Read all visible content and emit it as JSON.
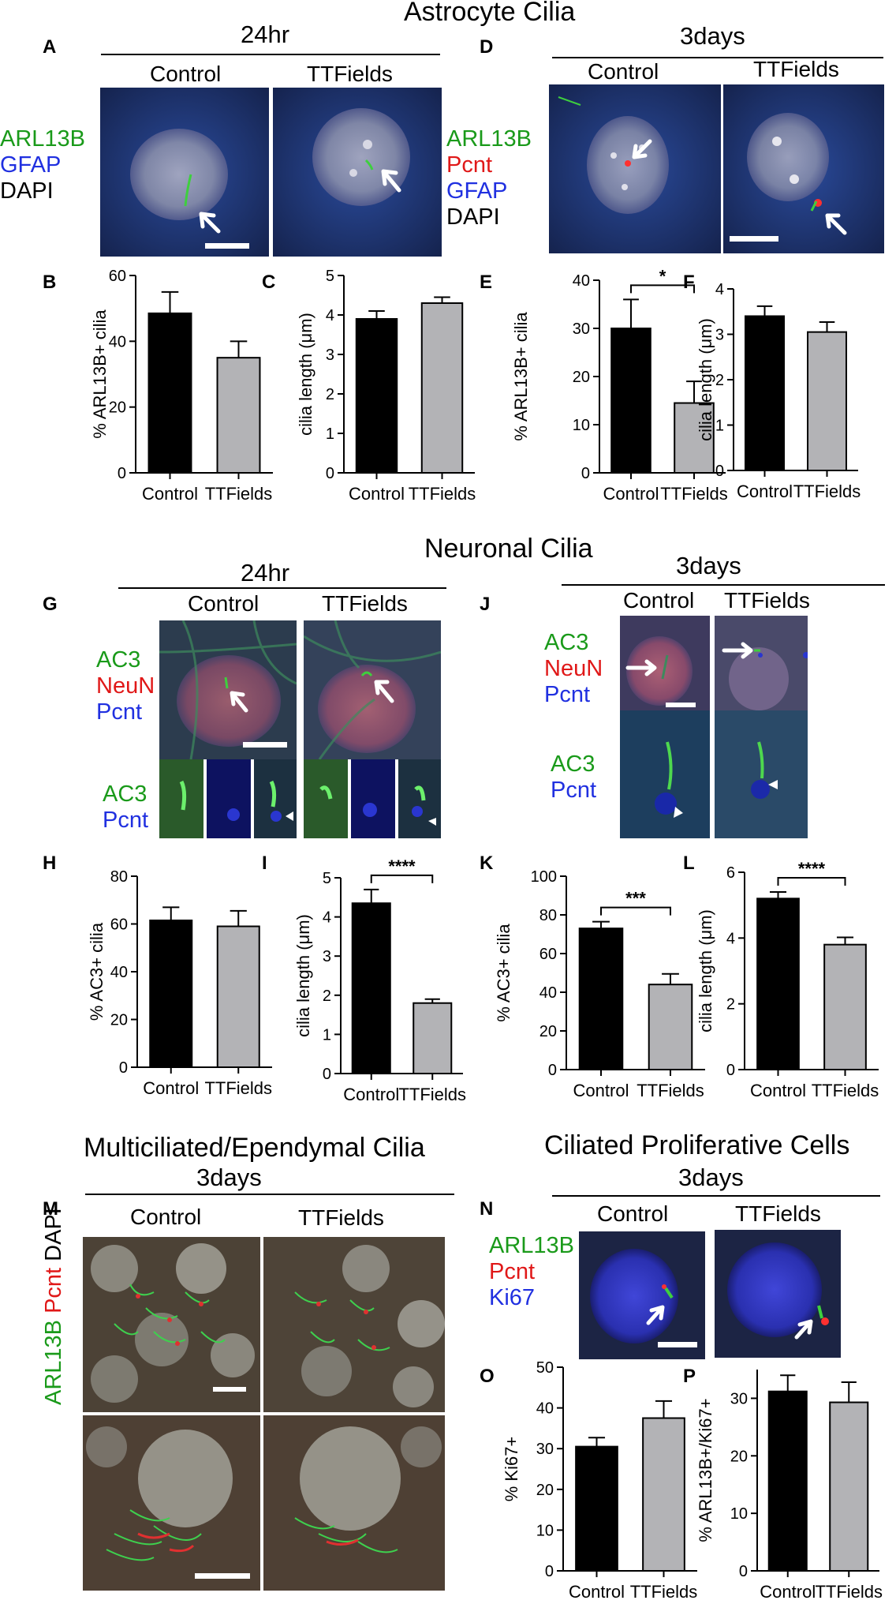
{
  "headings": {
    "astrocyte": "Astrocyte Cilia",
    "neuronal": "Neuronal Cilia",
    "multiciliated": "Multiciliated/Ependymal Cilia",
    "proliferative": "Ciliated Proliferative Cells"
  },
  "timepoints": {
    "t24": "24hr",
    "t3d": "3days"
  },
  "conditions": {
    "control": "Control",
    "ttfields": "TTFields"
  },
  "panel_letters": [
    "A",
    "B",
    "C",
    "D",
    "E",
    "F",
    "G",
    "H",
    "I",
    "J",
    "K",
    "L",
    "M",
    "N",
    "O",
    "P"
  ],
  "stains": {
    "A": [
      {
        "text": "ARL13B",
        "color": "#1a9a1a"
      },
      {
        "text": "GFAP",
        "color": "#2030e0"
      },
      {
        "text": "DAPI",
        "color": "#000000"
      }
    ],
    "D": [
      {
        "text": "ARL13B",
        "color": "#1a9a1a"
      },
      {
        "text": "Pcnt",
        "color": "#e01818"
      },
      {
        "text": "GFAP",
        "color": "#2030e0"
      },
      {
        "text": "DAPI",
        "color": "#000000"
      }
    ],
    "G_top": [
      {
        "text": "AC3",
        "color": "#1a9a1a"
      },
      {
        "text": "NeuN",
        "color": "#e01818"
      },
      {
        "text": "Pcnt",
        "color": "#2030e0"
      }
    ],
    "G_bottom": [
      {
        "text": "AC3",
        "color": "#1a9a1a"
      },
      {
        "text": "Pcnt",
        "color": "#2030e0"
      }
    ],
    "J_top": [
      {
        "text": "AC3",
        "color": "#1a9a1a"
      },
      {
        "text": "NeuN",
        "color": "#e01818"
      },
      {
        "text": "Pcnt",
        "color": "#2030e0"
      }
    ],
    "J_bottom": [
      {
        "text": "AC3",
        "color": "#1a9a1a"
      },
      {
        "text": "Pcnt",
        "color": "#2030e0"
      }
    ],
    "M": [
      {
        "text": "ARL13B",
        "color": "#1a9a1a"
      },
      {
        "text": " Pcnt",
        "color": "#e01818"
      },
      {
        "text": " DAPI",
        "color": "#000000"
      }
    ],
    "N": [
      {
        "text": "ARL13B",
        "color": "#1a9a1a"
      },
      {
        "text": "Pcnt",
        "color": "#e01818"
      },
      {
        "text": "Ki67",
        "color": "#2030e0"
      }
    ]
  },
  "chart_data": [
    {
      "panel": "B",
      "type": "bar",
      "categories": [
        "Control",
        "TTFields"
      ],
      "values": [
        48.5,
        35
      ],
      "errors": [
        6.5,
        5
      ],
      "ylabel": "% ARL13B+ cilia",
      "ylim": [
        0,
        60
      ],
      "yticks": [
        0,
        20,
        40,
        60
      ],
      "significance": ""
    },
    {
      "panel": "C",
      "type": "bar",
      "categories": [
        "Control",
        "TTFields"
      ],
      "values": [
        3.9,
        4.3
      ],
      "errors": [
        0.2,
        0.15
      ],
      "ylabel": "cilia length (μm)",
      "ylim": [
        0,
        5
      ],
      "yticks": [
        0,
        1,
        2,
        3,
        4,
        5
      ],
      "significance": ""
    },
    {
      "panel": "E",
      "type": "bar",
      "categories": [
        "Control",
        "TTFields"
      ],
      "values": [
        30,
        14.5
      ],
      "errors": [
        6,
        4.5
      ],
      "ylabel": "% ARL13B+ cilia",
      "ylim": [
        0,
        40
      ],
      "yticks": [
        0,
        10,
        20,
        30,
        40
      ],
      "significance": "*"
    },
    {
      "panel": "F",
      "type": "bar",
      "categories": [
        "Control",
        "TTFields"
      ],
      "values": [
        3.4,
        3.05
      ],
      "errors": [
        0.22,
        0.22
      ],
      "ylabel": "cilia length (μm)",
      "ylim": [
        0,
        4
      ],
      "yticks": [
        0,
        1,
        2,
        3,
        4
      ],
      "significance": ""
    },
    {
      "panel": "H",
      "type": "bar",
      "categories": [
        "Control",
        "TTFields"
      ],
      "values": [
        61.5,
        59
      ],
      "errors": [
        5.5,
        6.5
      ],
      "ylabel": "% AC3+ cilia",
      "ylim": [
        0,
        80
      ],
      "yticks": [
        0,
        20,
        40,
        60,
        80
      ],
      "significance": ""
    },
    {
      "panel": "I",
      "type": "bar",
      "categories": [
        "Control",
        "TTFields"
      ],
      "values": [
        4.35,
        1.8
      ],
      "errors": [
        0.35,
        0.1
      ],
      "ylabel": "cilia length (μm)",
      "ylim": [
        0,
        5
      ],
      "yticks": [
        0,
        1,
        2,
        3,
        4,
        5
      ],
      "significance": "****"
    },
    {
      "panel": "K",
      "type": "bar",
      "categories": [
        "Control",
        "TTFields"
      ],
      "values": [
        73,
        44
      ],
      "errors": [
        3.5,
        5.5
      ],
      "ylabel": "% AC3+ cilia",
      "ylim": [
        0,
        100
      ],
      "yticks": [
        0,
        20,
        40,
        60,
        80,
        100
      ],
      "significance": "***"
    },
    {
      "panel": "L",
      "type": "bar",
      "categories": [
        "Control",
        "TTFields"
      ],
      "values": [
        5.2,
        3.8
      ],
      "errors": [
        0.2,
        0.22
      ],
      "ylabel": "cilia length (μm)",
      "ylim": [
        0,
        6
      ],
      "yticks": [
        0,
        2,
        4,
        6
      ],
      "significance": "****"
    },
    {
      "panel": "O",
      "type": "bar",
      "categories": [
        "Control",
        "TTFields"
      ],
      "values": [
        30.5,
        37.5
      ],
      "errors": [
        2.2,
        4.2
      ],
      "ylabel": "% Ki67+",
      "ylim": [
        0,
        50
      ],
      "yticks": [
        0,
        10,
        20,
        30,
        40,
        50
      ],
      "significance": ""
    },
    {
      "panel": "P",
      "type": "bar",
      "categories": [
        "Control",
        "TTFields"
      ],
      "values": [
        31.2,
        29.3
      ],
      "errors": [
        2.8,
        3.5
      ],
      "ylabel": "% ARL13B+/Ki67+",
      "ylim": [
        0,
        35
      ],
      "yticks": [
        0,
        10,
        20,
        30
      ],
      "significance": ""
    }
  ],
  "colors": {
    "control_bar": "#000000",
    "ttfields_bar": "#b3b3b6"
  }
}
